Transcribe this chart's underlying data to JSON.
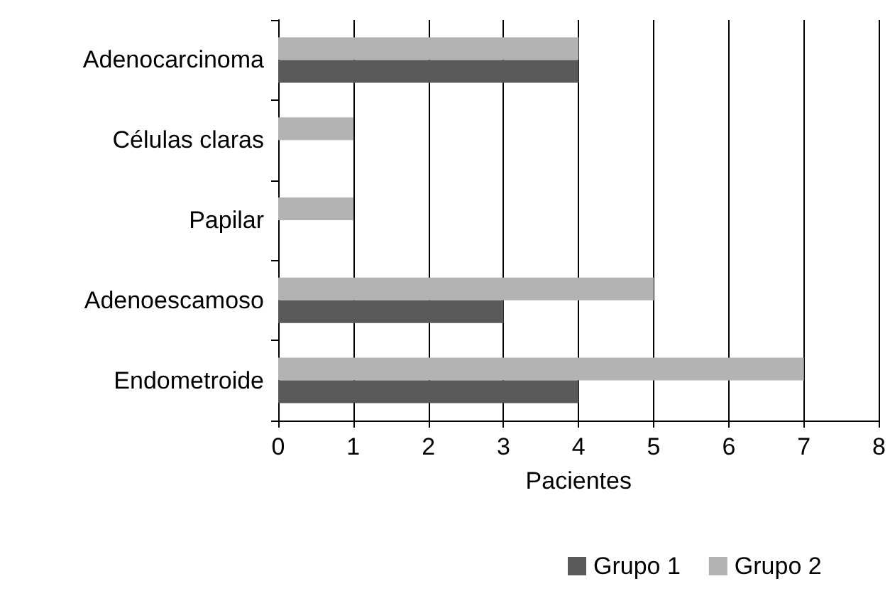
{
  "chart_data": {
    "type": "bar",
    "orientation": "horizontal",
    "categories": [
      "Adenocarcinoma",
      "Células claras",
      "Papilar",
      "Adenoescamoso",
      "Endometroide"
    ],
    "series": [
      {
        "name": "Grupo 1",
        "color": "#595959",
        "values": [
          4,
          0,
          0,
          3,
          4
        ]
      },
      {
        "name": "Grupo 2",
        "color": "#b3b3b3",
        "values": [
          4,
          1,
          1,
          5,
          7
        ]
      }
    ],
    "xlabel": "Pacientes",
    "xlim": [
      0,
      8
    ],
    "xticks": [
      0,
      1,
      2,
      3,
      4,
      5,
      6,
      7,
      8
    ],
    "grid": "x",
    "legend": "bottom"
  }
}
